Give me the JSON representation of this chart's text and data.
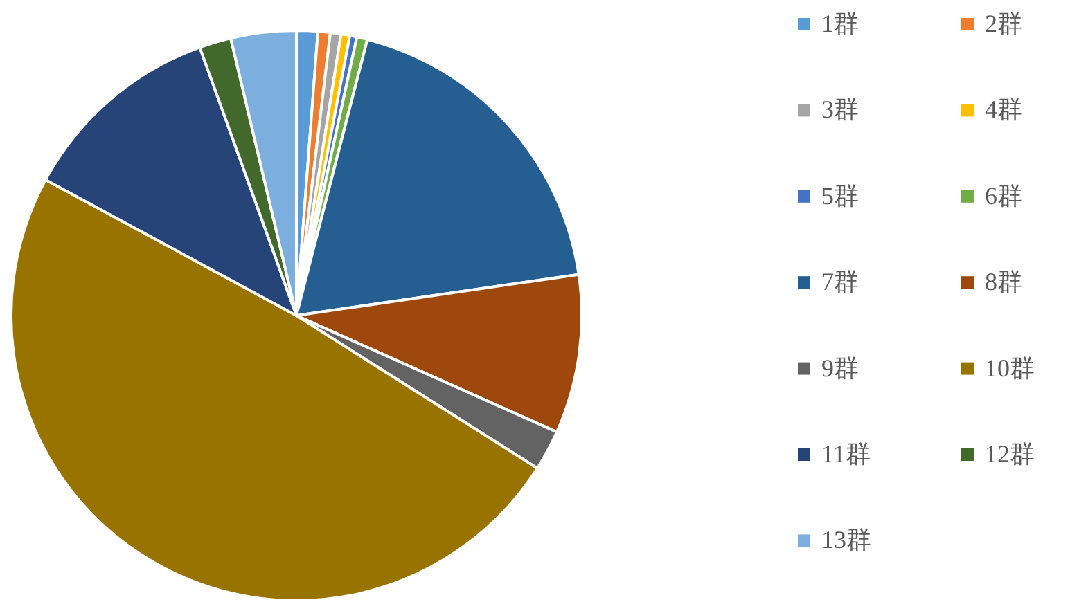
{
  "chart_data": {
    "type": "pie",
    "categories": [
      "1群",
      "2群",
      "3群",
      "4群",
      "5群",
      "6群",
      "7群",
      "8群",
      "9群",
      "10群",
      "11群",
      "12群",
      "13群"
    ],
    "values": [
      1.2,
      0.7,
      0.6,
      0.5,
      0.4,
      0.6,
      18.7,
      9.0,
      2.3,
      48.9,
      11.6,
      1.8,
      3.7
    ],
    "colors": [
      "#5b9bd5",
      "#ed7d31",
      "#a5a5a5",
      "#ffc000",
      "#4472c4",
      "#70ad47",
      "#255e91",
      "#9e480e",
      "#636363",
      "#997300",
      "#264478",
      "#43682b",
      "#7cafdd"
    ],
    "legend": "right"
  }
}
